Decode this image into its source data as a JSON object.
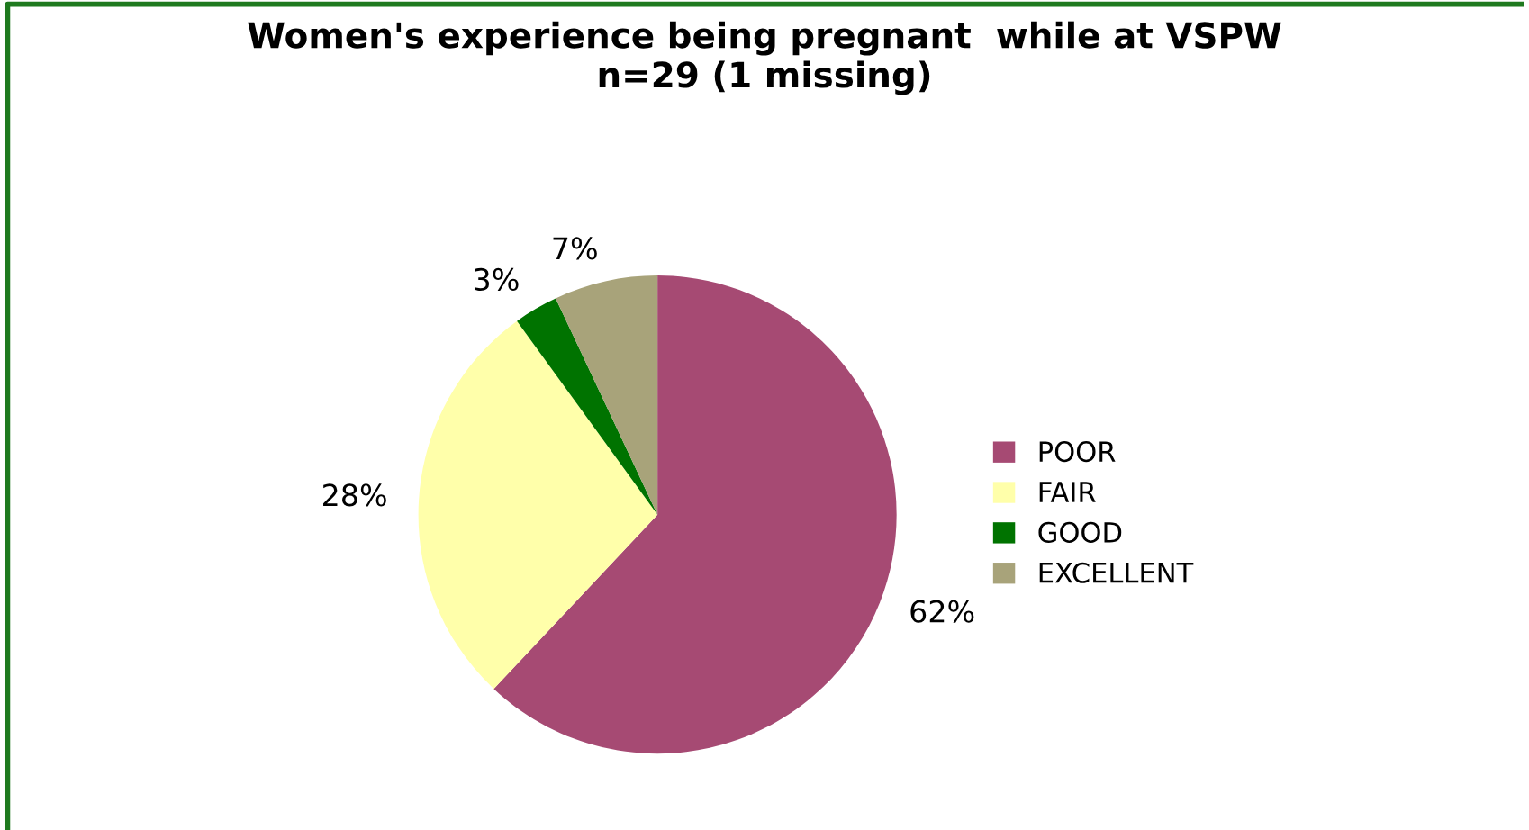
{
  "chart_data": {
    "type": "pie",
    "title": "Women's experience being pregnant  while at VSPW\nn=29 (1 missing)",
    "categories": [
      "POOR",
      "FAIR",
      "GOOD",
      "EXCELLENT"
    ],
    "values": [
      62,
      28,
      3,
      7
    ],
    "colors": [
      "#a64a73",
      "#ffffaa",
      "#007300",
      "#a8a37a"
    ],
    "value_labels": [
      "62%",
      "28%",
      "3%",
      "7%"
    ],
    "legend": "right"
  }
}
